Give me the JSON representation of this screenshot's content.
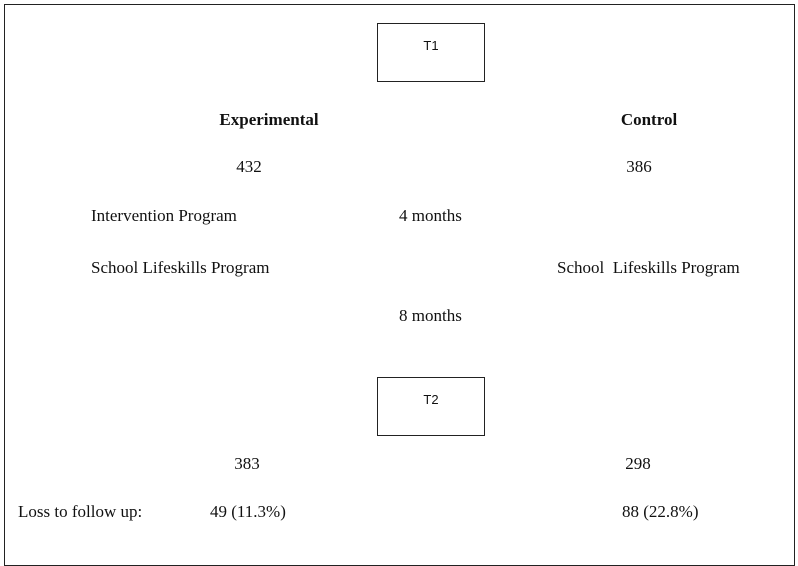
{
  "time_points": [
    "T1",
    "T2"
  ],
  "groups": [
    {
      "name": "Experimental",
      "baseline_n": "432",
      "program": "Intervention Program",
      "school_program": "School Lifeskills Program",
      "followup_n": "383",
      "loss": "49 (11.3%)"
    },
    {
      "name": "Control",
      "baseline_n": "386",
      "school_program": "School  Lifeskills Program",
      "followup_n": "298",
      "loss": "88 (22.8%)"
    }
  ],
  "durations": [
    "4 months",
    "8 months"
  ],
  "loss_label": "Loss to follow up:"
}
